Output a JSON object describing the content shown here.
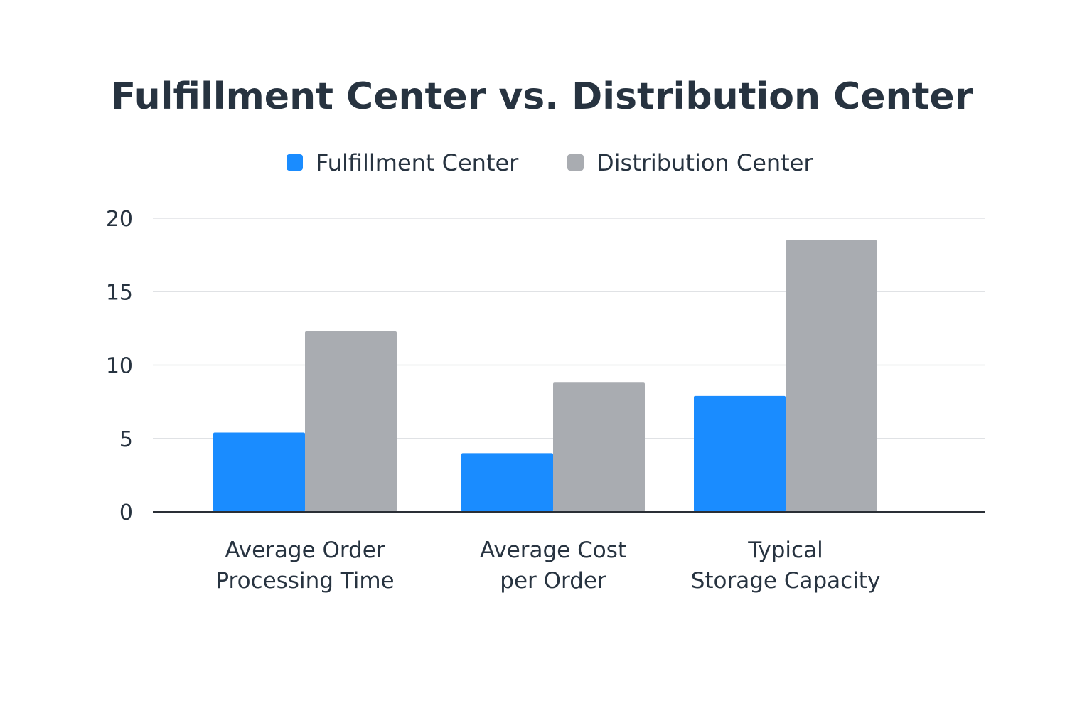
{
  "chart_data": {
    "type": "bar",
    "title": "Fulfillment Center vs. Distribution Center",
    "xlabel": "",
    "ylabel": "",
    "ylim": [
      0,
      20
    ],
    "yticks": [
      "0",
      "5",
      "10",
      "15",
      "20"
    ],
    "grid": true,
    "legend_position": "top-center",
    "categories": [
      [
        "Average Order",
        "Processing Time"
      ],
      [
        "Average Cost",
        "per Order"
      ],
      [
        "Typical",
        "Storage Capacity"
      ]
    ],
    "series": [
      {
        "name": "Fulfillment Center",
        "color": "#1a8cff",
        "values": [
          5.4,
          4.0,
          7.9
        ]
      },
      {
        "name": "Distribution Center",
        "color": "#a9acb1",
        "values": [
          12.3,
          8.8,
          18.5
        ]
      }
    ]
  }
}
